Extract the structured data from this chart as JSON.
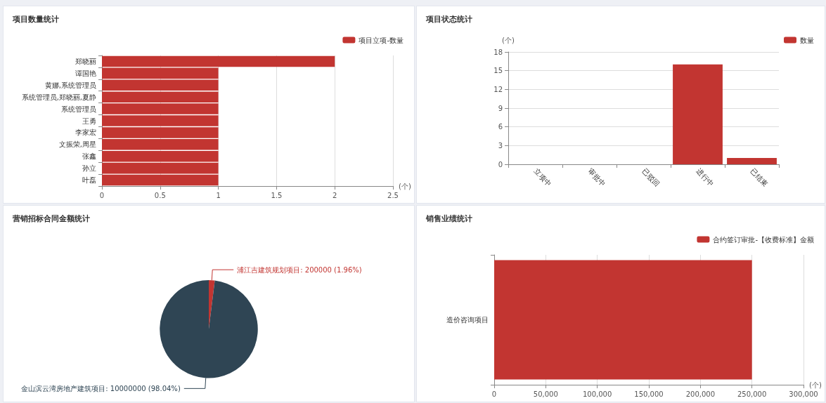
{
  "chart_data": [
    {
      "type": "bar",
      "title": "项目数量统计",
      "orientation": "horizontal",
      "xlabel": "(个)",
      "categories": [
        "郑晓丽",
        "谭国艳",
        "黄娜,系统管理员",
        "系统管理员,郑晓丽,夏静",
        "系统管理员",
        "王勇",
        "李家宏",
        "文振荣,周星",
        "张鑫",
        "孙立",
        "叶磊"
      ],
      "series": [
        {
          "name": "项目立项-数量",
          "color": "#c23531",
          "values": [
            2,
            1,
            1,
            1,
            1,
            1,
            1,
            1,
            1,
            1,
            1
          ]
        }
      ],
      "xlim": [
        0,
        2.5
      ],
      "xticks": [
        0,
        0.5,
        1,
        1.5,
        2,
        2.5
      ],
      "grid": "x",
      "legend": "top right"
    },
    {
      "type": "bar",
      "title": "项目状态统计",
      "ylabel": "(个)",
      "categories": [
        "立项中",
        "审批中",
        "已驳回",
        "进行中",
        "已结束"
      ],
      "series": [
        {
          "name": "数量",
          "color": "#c23531",
          "values": [
            0,
            0,
            0,
            16,
            1
          ]
        }
      ],
      "ylim": [
        0,
        18
      ],
      "yticks": [
        0,
        3,
        6,
        9,
        12,
        15,
        18
      ],
      "grid": "y",
      "legend": "top right"
    },
    {
      "type": "pie",
      "title": "营销招标合同金额统计",
      "categories": [
        "浦江吉建筑规划项目",
        "金山滨云湾房地产建筑项目"
      ],
      "values": [
        200000,
        10000000
      ],
      "colors": [
        "#c23531",
        "#2f4554"
      ],
      "value_labels": [
        "200000 (1.96%)",
        "10000000 (98.04%)"
      ]
    },
    {
      "type": "bar",
      "title": "销售业绩统计",
      "orientation": "horizontal",
      "xlabel": "(个)",
      "categories": [
        "造价咨询项目"
      ],
      "series": [
        {
          "name": "合约签订审批-【收费标准】金额",
          "color": "#c23531",
          "values": [
            250000
          ]
        }
      ],
      "xlim": [
        0,
        300000
      ],
      "xticks": [
        0,
        {
          "value": 50000,
          "label": "50,000"
        },
        {
          "value": 100000,
          "label": "100,000"
        },
        {
          "value": 150000,
          "label": "150,000"
        },
        {
          "value": 200000,
          "label": "200,000"
        },
        {
          "value": 250000,
          "label": "250,000"
        },
        {
          "value": 300000,
          "label": "300,000"
        }
      ],
      "grid": "x",
      "legend": "top right"
    }
  ]
}
